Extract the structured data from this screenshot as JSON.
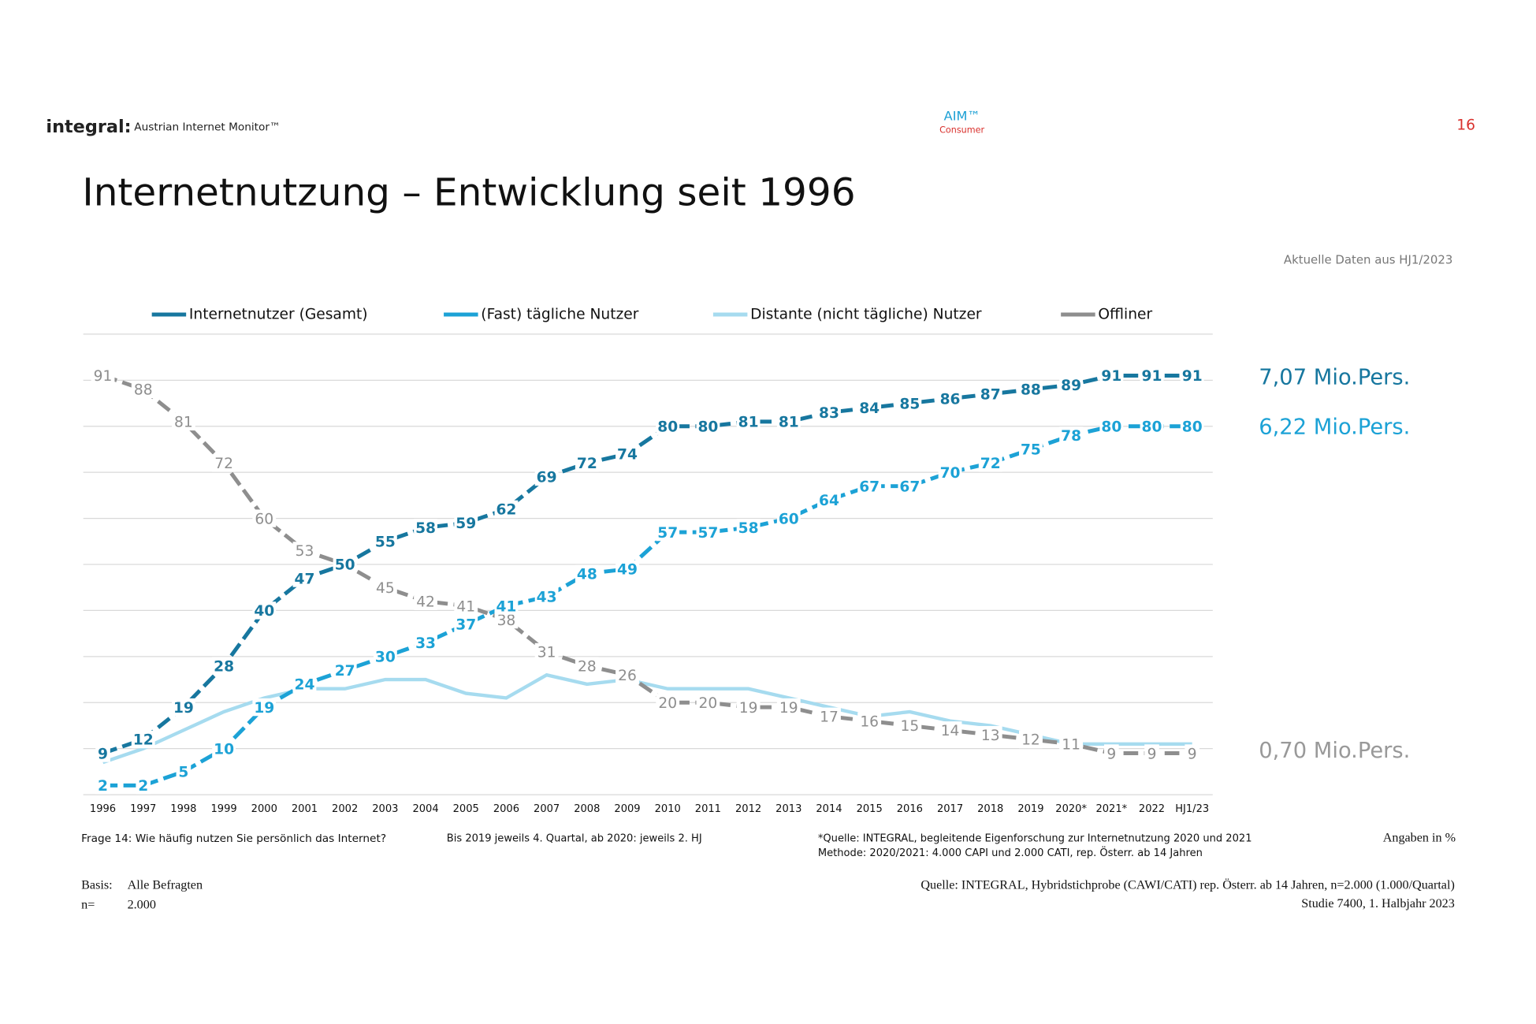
{
  "header": {
    "logo": "integral:",
    "product": "Austrian Internet Monitor™",
    "aim": "AIM™",
    "aim_sub": "Consumer",
    "page": "16"
  },
  "chart_data": {
    "type": "line",
    "title": "Internetnutzung – Entwicklung seit 1996",
    "subtitle": "Aktuelle Daten aus HJ1/2023",
    "categories": [
      "1996",
      "1997",
      "1998",
      "1999",
      "2000",
      "2001",
      "2002",
      "2003",
      "2004",
      "2005",
      "2006",
      "2007",
      "2008",
      "2009",
      "2010",
      "2011",
      "2012",
      "2013",
      "2014",
      "2015",
      "2016",
      "2017",
      "2018",
      "2019",
      "2020*",
      "2021*",
      "2022",
      "HJ1/23"
    ],
    "series": [
      {
        "name": "Internetnutzer (Gesamt)",
        "color": "#17779f",
        "dashed": true,
        "data_labels": true,
        "values": [
          9,
          12,
          19,
          28,
          40,
          47,
          50,
          55,
          58,
          59,
          62,
          69,
          72,
          74,
          80,
          80,
          81,
          81,
          83,
          84,
          85,
          86,
          87,
          88,
          89,
          91,
          91,
          91
        ]
      },
      {
        "name": "(Fast) tägliche Nutzer",
        "color": "#1ca2d6",
        "dashed": true,
        "data_labels": true,
        "values": [
          2,
          2,
          5,
          10,
          19,
          24,
          27,
          30,
          33,
          37,
          41,
          43,
          48,
          49,
          57,
          57,
          58,
          60,
          64,
          67,
          67,
          70,
          72,
          75,
          78,
          80,
          80,
          80
        ]
      },
      {
        "name": "Distante (nicht tägliche) Nutzer",
        "color": "#a6dbef",
        "dashed": false,
        "data_labels": false,
        "values": [
          7,
          10,
          14,
          18,
          21,
          23,
          23,
          25,
          25,
          22,
          21,
          26,
          24,
          25,
          23,
          23,
          23,
          21,
          19,
          17,
          18,
          16,
          15,
          13,
          11,
          11,
          11,
          11
        ]
      },
      {
        "name": "Offliner",
        "color": "#8e8e8e",
        "dashed": true,
        "data_labels": true,
        "values": [
          91,
          88,
          81,
          72,
          60,
          53,
          50,
          45,
          42,
          41,
          38,
          31,
          28,
          26,
          20,
          20,
          19,
          19,
          17,
          16,
          15,
          14,
          13,
          12,
          11,
          9,
          9,
          9
        ]
      }
    ],
    "ylim": [
      0,
      100
    ],
    "yticks": [
      0,
      10,
      20,
      30,
      40,
      50,
      60,
      70,
      80,
      90,
      100
    ],
    "grid": true,
    "annotations": [
      "7,07 Mio.Pers.",
      "6,22 Mio.Pers.",
      "0,70 Mio.Pers."
    ]
  },
  "footer": {
    "question": "Frage 14: Wie häufig nutzen Sie persönlich das Internet?",
    "period": "Bis 2019  jeweils 4. Quartal, ab 2020: jeweils 2. HJ",
    "source_note": [
      "*Quelle: INTEGRAL, begleitende Eigenforschung zur Internetnutzung 2020 und 2021",
      "Methode: 2020/2021: 4.000 CAPI und 2.000 CATI, rep. Österr. ab 14 Jahren"
    ],
    "unit": "Angaben in %",
    "basis_label": "Basis:",
    "basis": "Alle Befragten",
    "n_label": "n=",
    "n": "2.000",
    "source": "Quelle: INTEGRAL, Hybridstichprobe (CAWI/CATI)  rep. Österr. ab 14 Jahren, n=2.000 (1.000/Quartal)",
    "study": "Studie 7400, 1. Halbjahr 2023"
  }
}
